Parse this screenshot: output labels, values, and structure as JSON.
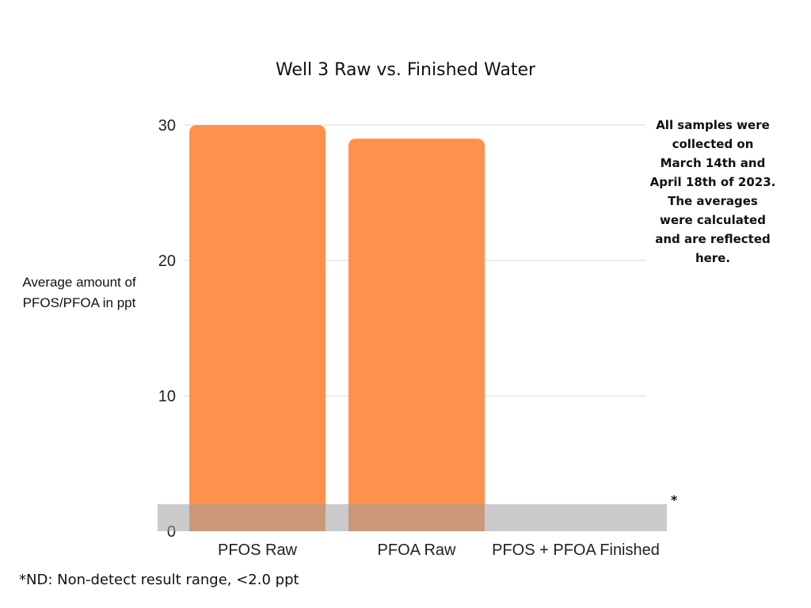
{
  "chart_data": {
    "type": "bar",
    "title": "Well 3 Raw vs. Finished Water",
    "ylabel": "Average amount of PFOS/PFOA in ppt",
    "xlabel": "",
    "categories": [
      "PFOS Raw",
      "PFOA Raw",
      "PFOS + PFOA Finished"
    ],
    "values": [
      30,
      29,
      0
    ],
    "ylim": [
      0,
      30
    ],
    "yticks": [
      0,
      10,
      20,
      30
    ],
    "grid": true,
    "non_detect_band": [
      0,
      2.0
    ],
    "annotations": {
      "side_note": "All samples were collected on March 14th and April 18th of 2023. The averages were calculated and are reflected here.",
      "nd_marker": "*",
      "footnote": "*ND: Non-detect result range, <2.0 ppt"
    },
    "colors": {
      "bar": "#ff914d",
      "grid": "#d9d9d9",
      "nd_band": "#9e9e9e"
    }
  }
}
